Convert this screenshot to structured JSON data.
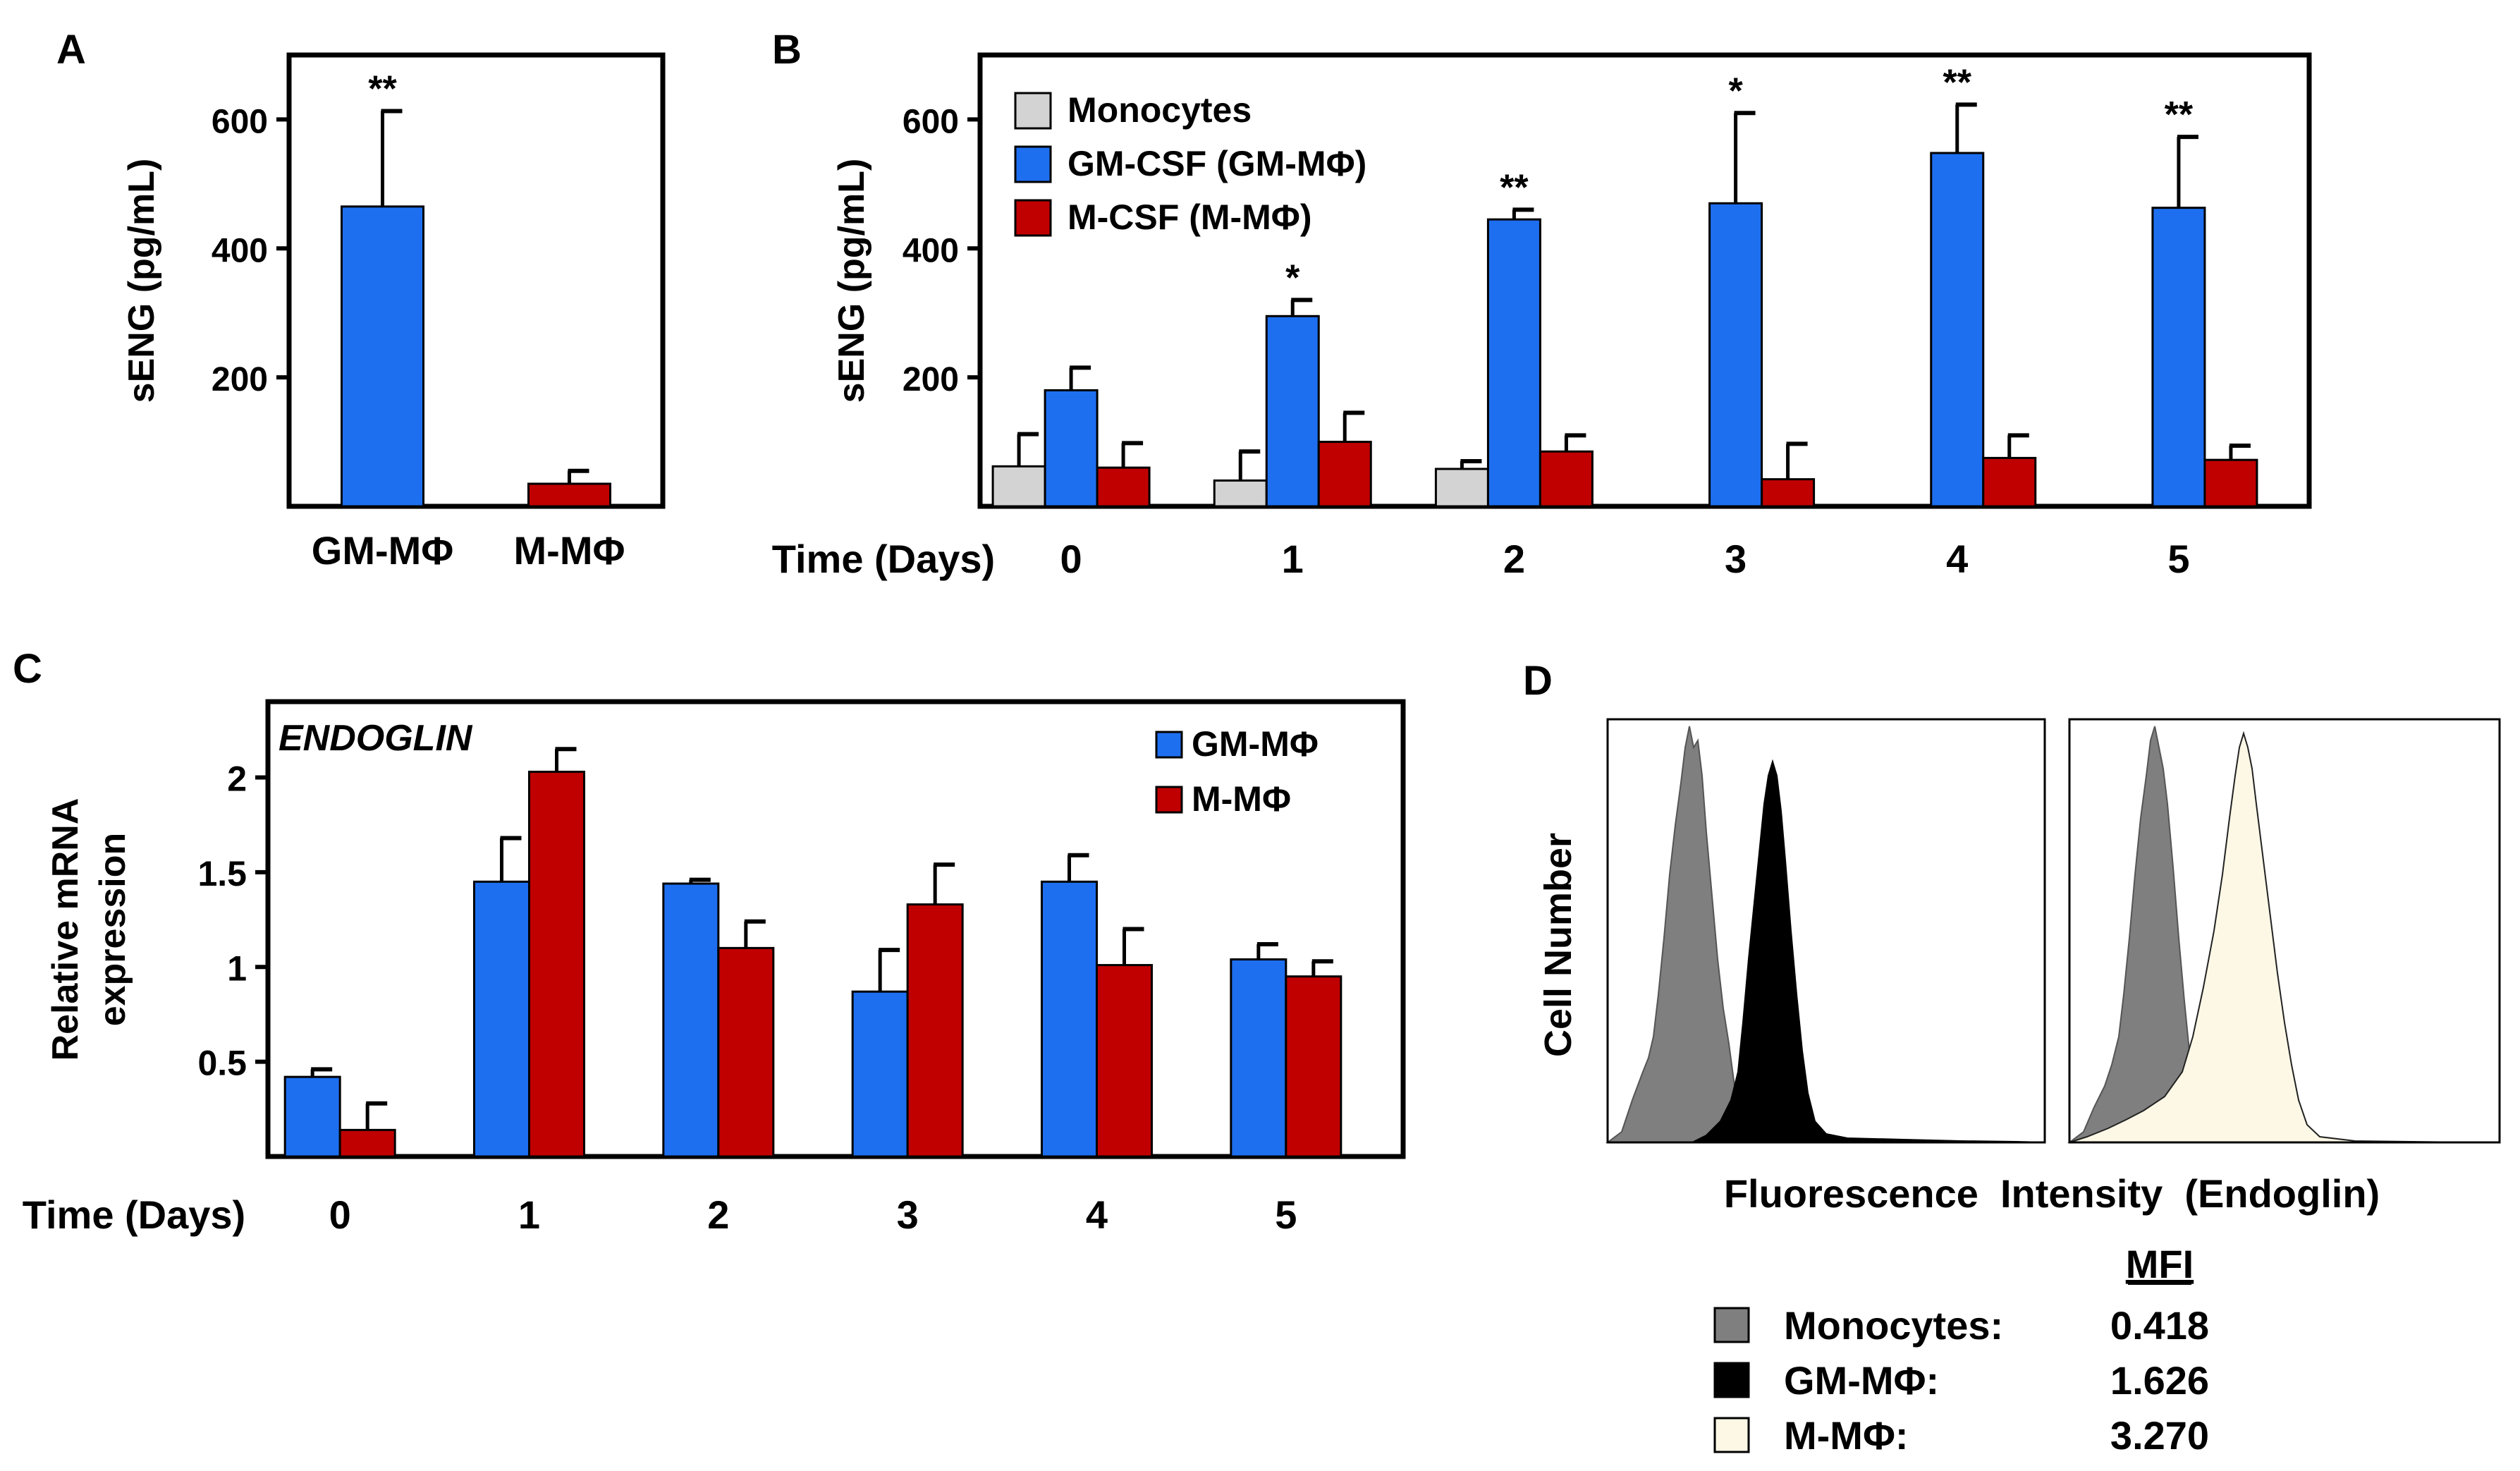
{
  "colors": {
    "monocytes": "#d3d3d3",
    "gm": "#1e6ff0",
    "m": "#c00000",
    "hist_mono": "#7f7f7f",
    "hist_gm": "#000000",
    "hist_m": "#fdf8e6",
    "frame": "#000000"
  },
  "chart_data": [
    {
      "panel": "A",
      "type": "bar",
      "ylabel": "sENG (pg/mL)",
      "ylim": [
        0,
        700
      ],
      "yticks": [
        200,
        400,
        600
      ],
      "categories": [
        "GM-MΦ",
        "M-MΦ"
      ],
      "values": [
        465,
        35
      ],
      "errors": [
        148,
        20
      ],
      "significance": [
        "**",
        ""
      ],
      "bar_colors": [
        "#1e6ff0",
        "#c00000"
      ]
    },
    {
      "panel": "B",
      "type": "bar",
      "ylabel": "sENG (pg/mL)",
      "xlabel": "Time (Days)",
      "ylim": [
        0,
        700
      ],
      "yticks": [
        200,
        400,
        600
      ],
      "categories": [
        "0",
        "1",
        "2",
        "3",
        "4",
        "5"
      ],
      "legend_position": "top-left",
      "series": [
        {
          "name": "Monocytes",
          "color": "#d3d3d3",
          "values": [
            62,
            40,
            58,
            null,
            null,
            null
          ],
          "errors": [
            50,
            45,
            12,
            null,
            null,
            null
          ]
        },
        {
          "name": "GM-CSF (GM-MΦ)",
          "color": "#1e6ff0",
          "values": [
            180,
            295,
            445,
            470,
            548,
            463
          ],
          "errors": [
            35,
            25,
            15,
            140,
            75,
            110
          ]
        },
        {
          "name": "M-CSF (M-MΦ)",
          "color": "#c00000",
          "values": [
            60,
            100,
            85,
            42,
            75,
            72
          ],
          "errors": [
            38,
            45,
            25,
            55,
            35,
            22
          ]
        }
      ],
      "significance": [
        "",
        "*",
        "**",
        "*",
        "**",
        "**"
      ]
    },
    {
      "panel": "C",
      "type": "bar",
      "annotation": "ENDOGLIN",
      "ylabel": [
        "Relative mRNA",
        "expression"
      ],
      "xlabel": "Time (Days)",
      "ylim": [
        0,
        2.4
      ],
      "yticks": [
        0.5,
        1,
        1.5,
        2
      ],
      "ytick_labels": [
        "0.5",
        "1",
        "1.5",
        "2"
      ],
      "categories": [
        "0",
        "1",
        "2",
        "3",
        "4",
        "5"
      ],
      "legend_position": "top-right",
      "series": [
        {
          "name": "GM-MΦ",
          "color": "#1e6ff0",
          "values": [
            0.42,
            1.45,
            1.44,
            0.87,
            1.45,
            1.04
          ],
          "errors": [
            0.04,
            0.23,
            0.02,
            0.22,
            0.14,
            0.08
          ]
        },
        {
          "name": "M-MΦ",
          "color": "#c00000",
          "values": [
            0.14,
            2.03,
            1.1,
            1.33,
            1.01,
            0.95
          ],
          "errors": [
            0.14,
            0.12,
            0.14,
            0.21,
            0.19,
            0.08
          ]
        }
      ]
    }
  ],
  "labels": {
    "panel_a": "A",
    "panel_b": "B",
    "panel_c": "C",
    "panel_d": "D"
  },
  "panel_d": {
    "ylabel": "Cell Number",
    "xlabel": "Fluorescence  Intensity  (Endoglin)",
    "mfi_header": "MFI",
    "mfi_rows": [
      {
        "label": "Monocytes:",
        "value": "0.418",
        "color": "#7f7f7f"
      },
      {
        "label": "GM-MΦ:",
        "value": "1.626",
        "color": "#000000"
      },
      {
        "label": "M-MΦ:",
        "value": "3.270",
        "color": "#fdf8e6"
      }
    ]
  }
}
